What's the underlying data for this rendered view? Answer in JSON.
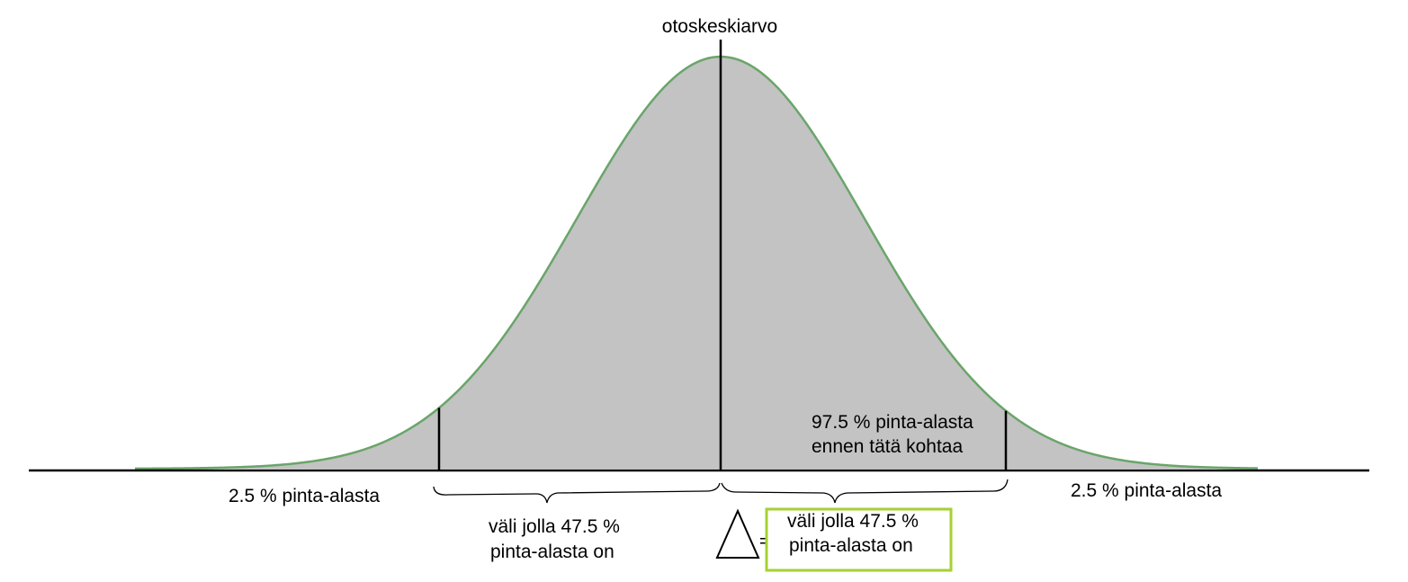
{
  "labels": {
    "mean": "otoskeskiarvo",
    "left_tail": "2.5 % pinta-alasta",
    "right_tail": "2.5 % pinta-alasta",
    "cumulative_line1": "97.5 % pinta-alasta",
    "cumulative_line2": "ennen tätä kohtaa",
    "interval_line1": "väli jolla 47.5 %",
    "interval_line2": "pinta-alasta on",
    "boxed_line1": "väli jolla 47.5 %",
    "boxed_line2": "pinta-alasta on",
    "equals": "="
  },
  "colors": {
    "curve": "#6aa56a",
    "fill": "#c3c3c3",
    "axis": "#000000",
    "box_border": "#a6d132"
  },
  "icons": {
    "delta": "delta-triangle-icon"
  }
}
